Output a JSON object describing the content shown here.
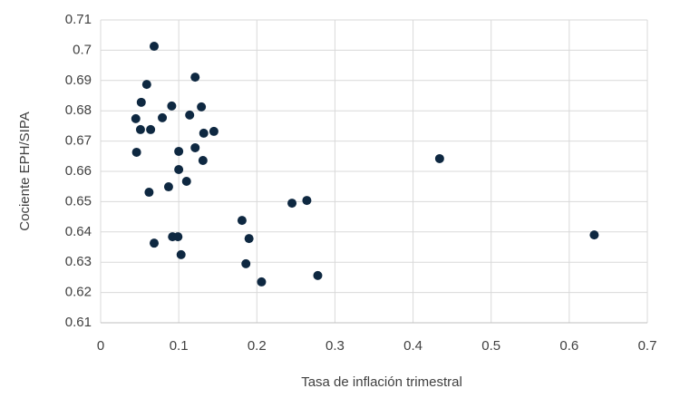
{
  "chart_data": {
    "type": "scatter",
    "x_label": "Tasa de inflación trimestral",
    "y_label": "Cociente EPH/SIPA",
    "color": "#0e2841",
    "x": [
      0.0685,
      0.059,
      0.121,
      0.052,
      0.045,
      0.091,
      0.129,
      0.079,
      0.114,
      0.051,
      0.064,
      0.145,
      0.132,
      0.121,
      0.1,
      0.046,
      0.131,
      0.1,
      0.11,
      0.087,
      0.062,
      0.434,
      0.245,
      0.264,
      0.181,
      0.092,
      0.099,
      0.19,
      0.0685,
      0.103,
      0.186,
      0.278,
      0.206,
      0.632
    ],
    "y": [
      0.7013,
      0.6887,
      0.6911,
      0.6828,
      0.6774,
      0.6816,
      0.6813,
      0.6777,
      0.6786,
      0.6738,
      0.6738,
      0.6732,
      0.6726,
      0.6678,
      0.6666,
      0.6663,
      0.6636,
      0.6606,
      0.6567,
      0.6549,
      0.6531,
      0.6642,
      0.6495,
      0.6504,
      0.6438,
      0.6384,
      0.6384,
      0.6378,
      0.6363,
      0.6325,
      0.6295,
      0.6256,
      0.6235,
      0.639
    ],
    "xlim": [
      0,
      0.7
    ],
    "xticks": [
      0,
      0.1,
      0.2,
      0.3,
      0.4,
      0.5,
      0.6,
      0.7
    ],
    "ylim": [
      0.61,
      0.71
    ],
    "yticks": [
      0.61,
      0.62,
      0.63,
      0.64,
      0.65,
      0.66,
      0.67,
      0.68,
      0.69,
      0.7,
      0.71
    ],
    "grid": true
  }
}
